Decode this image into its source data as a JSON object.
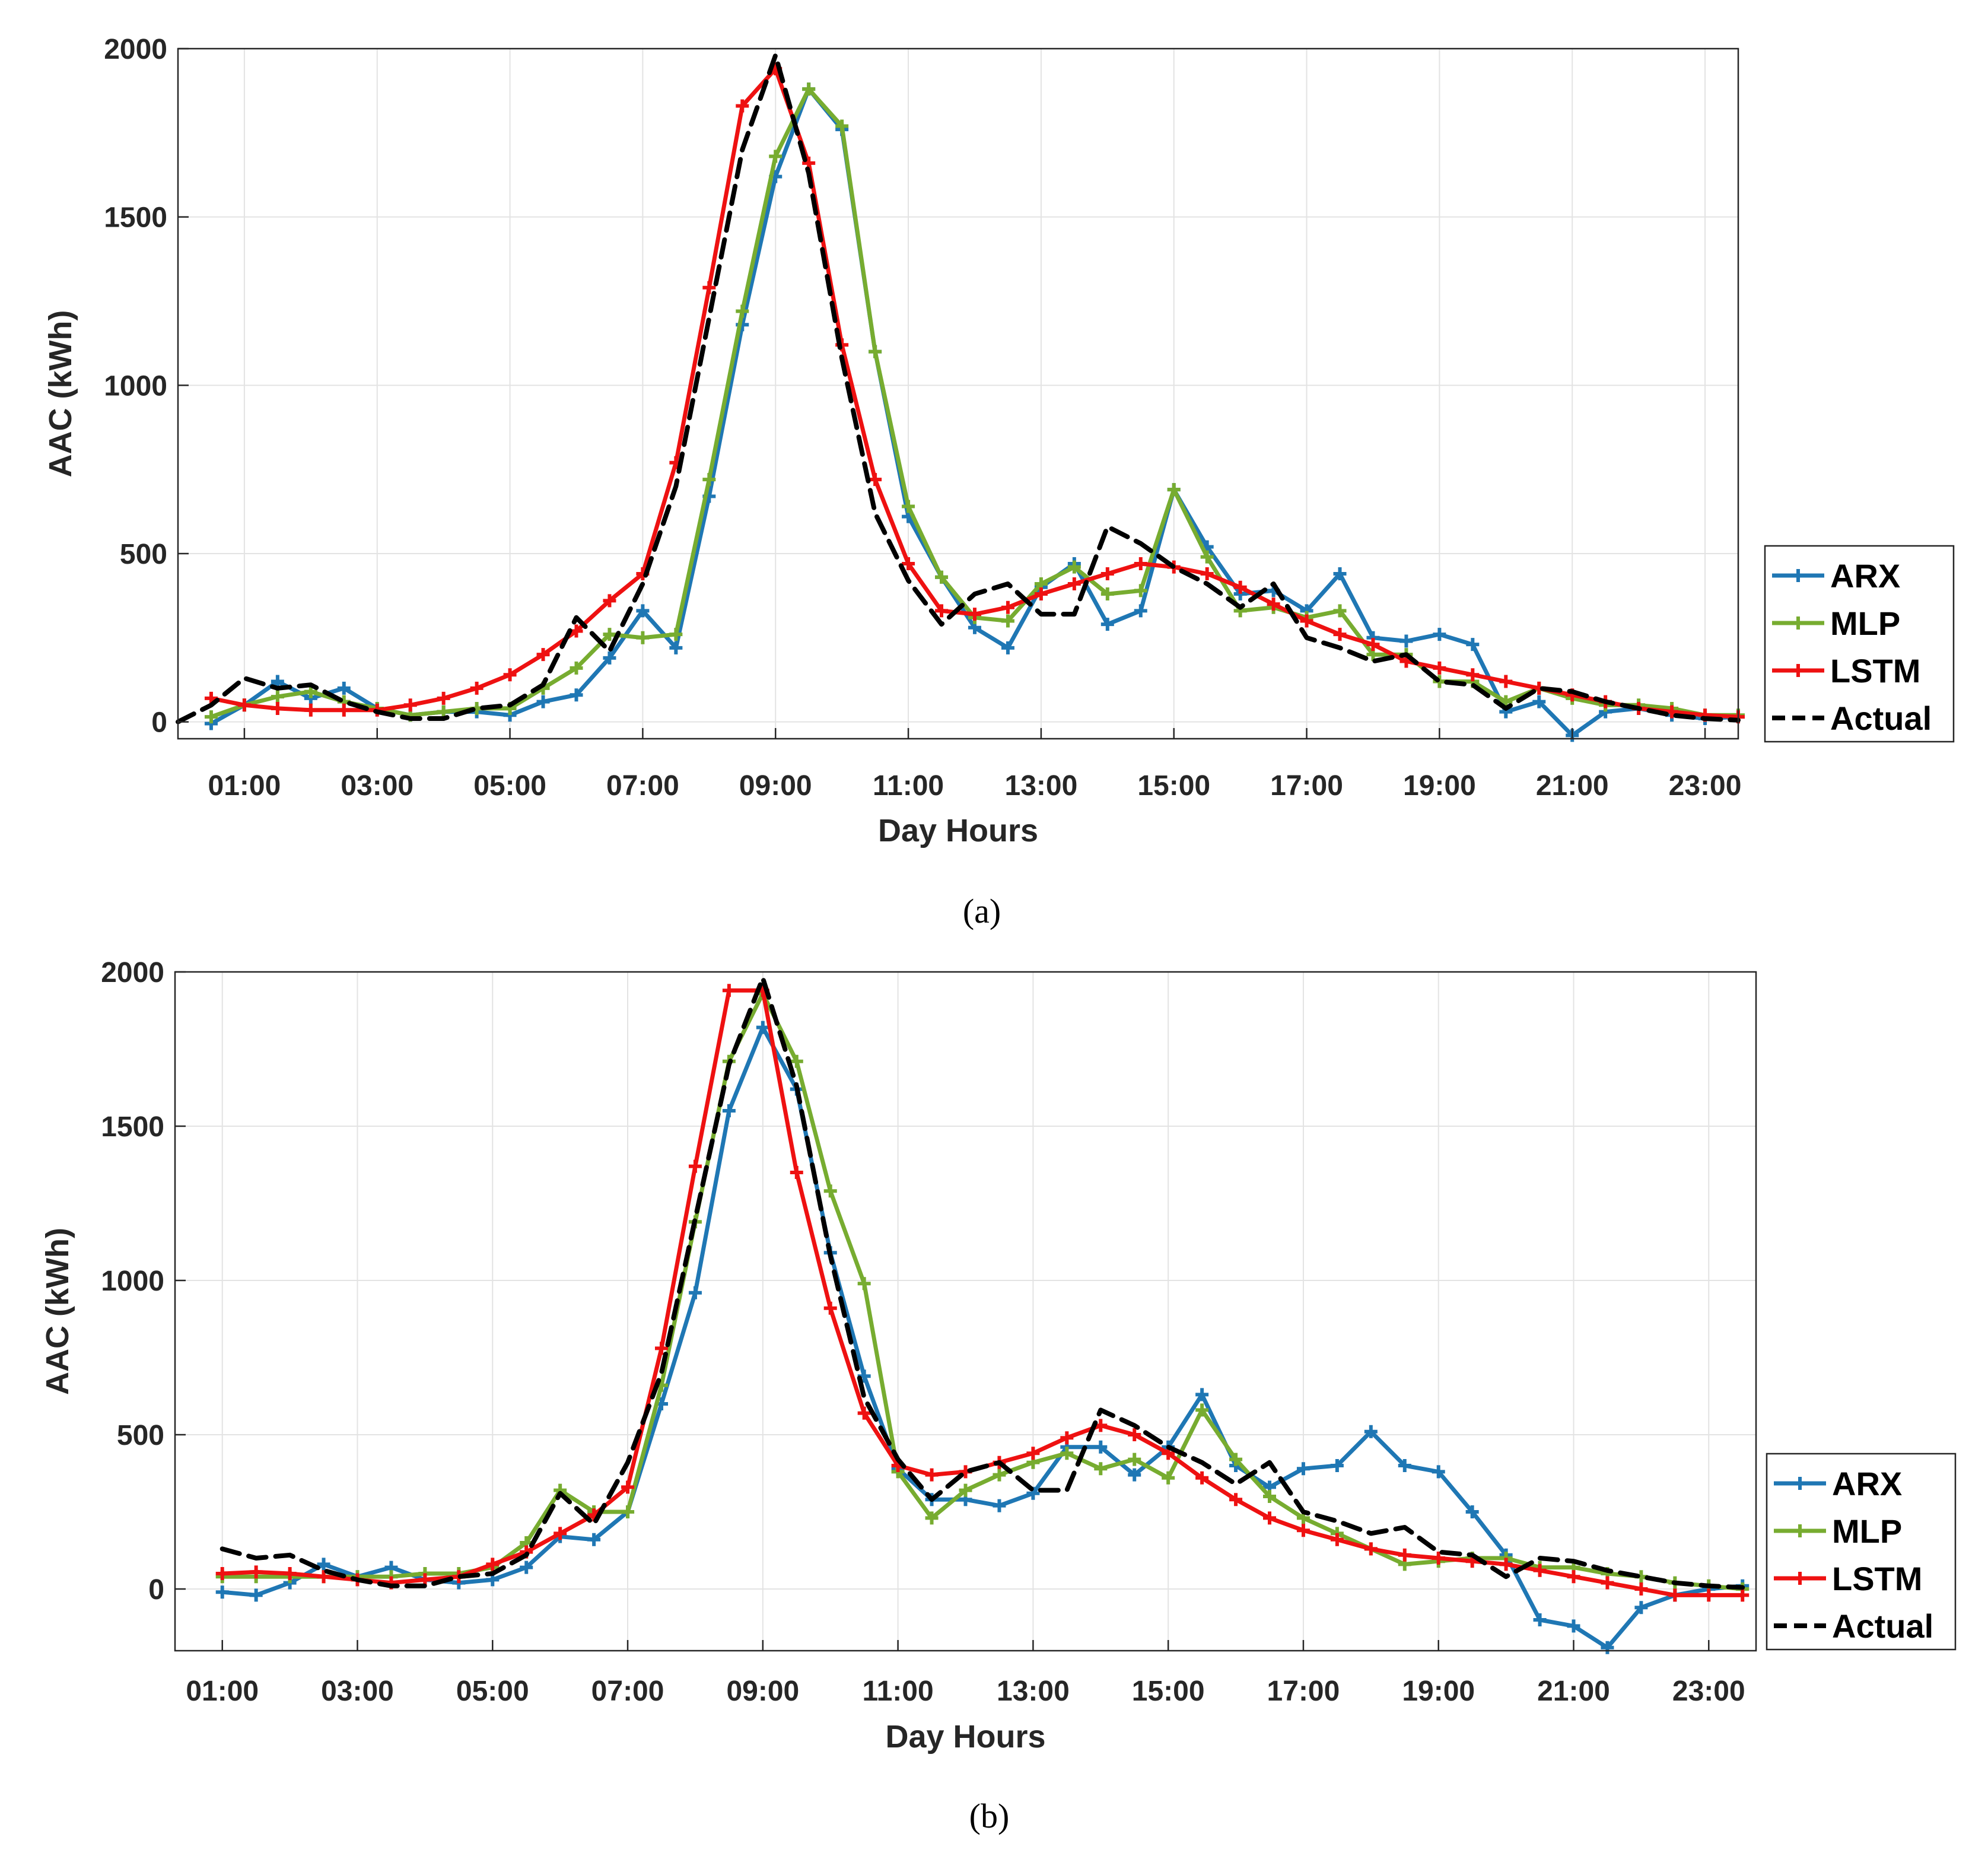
{
  "colors": {
    "ARX": "#1f77b4",
    "MLP": "#77ac30",
    "LSTM": "#ee1111",
    "Actual": "#000000"
  },
  "chart_data": [
    {
      "type": "line",
      "caption": "(a)",
      "xlabel": "Day Hours",
      "ylabel": "AAC (kWh)",
      "xticklabels": [
        "01:00",
        "03:00",
        "05:00",
        "07:00",
        "09:00",
        "11:00",
        "13:00",
        "15:00",
        "17:00",
        "19:00",
        "21:00",
        "23:00"
      ],
      "xtick_values": [
        1,
        3,
        5,
        7,
        9,
        11,
        13,
        15,
        17,
        19,
        21,
        23
      ],
      "xlim": [
        0,
        23.5
      ],
      "ylim": [
        -50,
        2000
      ],
      "yticks": [
        0,
        500,
        1000,
        1500,
        2000
      ],
      "yticklabels": [
        "0",
        "500",
        "1000",
        "1500",
        "2000"
      ],
      "legend_position": "lower-right-outside",
      "series": [
        {
          "name": "ARX",
          "marker": true,
          "style": "solid",
          "x": [
            0.5,
            1,
            1.5,
            2,
            2.5,
            3,
            3.5,
            4,
            4.5,
            5,
            5.5,
            6,
            6.5,
            7,
            7.5,
            8,
            8.5,
            9,
            9.5,
            10,
            10.5,
            11,
            11.5,
            12,
            12.5,
            13,
            13.5,
            14,
            14.5,
            15,
            15.5,
            16,
            16.5,
            17,
            17.5,
            18,
            18.5,
            19,
            19.5,
            20,
            20.5,
            21,
            21.5,
            22,
            22.5,
            23,
            23.5
          ],
          "y": [
            -5,
            50,
            120,
            70,
            100,
            40,
            20,
            30,
            30,
            20,
            60,
            80,
            190,
            330,
            220,
            670,
            1180,
            1620,
            1880,
            1760,
            1100,
            610,
            430,
            280,
            220,
            400,
            470,
            290,
            330,
            690,
            520,
            380,
            390,
            330,
            440,
            250,
            240,
            260,
            230,
            30,
            60,
            -40,
            30,
            40,
            20,
            10,
            15
          ]
        },
        {
          "name": "MLP",
          "marker": true,
          "style": "solid",
          "x": [
            0.5,
            1,
            1.5,
            2,
            2.5,
            3,
            3.5,
            4,
            4.5,
            5,
            5.5,
            6,
            6.5,
            7,
            7.5,
            8,
            8.5,
            9,
            9.5,
            10,
            10.5,
            11,
            11.5,
            12,
            12.5,
            13,
            13.5,
            14,
            14.5,
            15,
            15.5,
            16,
            16.5,
            17,
            17.5,
            18,
            18.5,
            19,
            19.5,
            20,
            20.5,
            21,
            21.5,
            22,
            22.5,
            23,
            23.5
          ],
          "y": [
            15,
            50,
            75,
            90,
            60,
            40,
            20,
            30,
            40,
            40,
            100,
            160,
            260,
            250,
            260,
            720,
            1220,
            1680,
            1880,
            1770,
            1100,
            640,
            430,
            310,
            300,
            410,
            460,
            380,
            390,
            690,
            490,
            330,
            340,
            310,
            330,
            200,
            200,
            120,
            120,
            60,
            100,
            70,
            50,
            50,
            40,
            20,
            20
          ]
        },
        {
          "name": "LSTM",
          "marker": true,
          "style": "solid",
          "x": [
            0.5,
            1,
            1.5,
            2,
            2.5,
            3,
            3.5,
            4,
            4.5,
            5,
            5.5,
            6,
            6.5,
            7,
            7.5,
            8,
            8.5,
            9,
            9.5,
            10,
            10.5,
            11,
            11.5,
            12,
            12.5,
            13,
            13.5,
            14,
            14.5,
            15,
            15.5,
            16,
            16.5,
            17,
            17.5,
            18,
            18.5,
            19,
            19.5,
            20,
            20.5,
            21,
            21.5,
            22,
            22.5,
            23,
            23.5
          ],
          "y": [
            70,
            50,
            40,
            35,
            35,
            35,
            50,
            70,
            100,
            140,
            200,
            270,
            360,
            440,
            770,
            1290,
            1830,
            1940,
            1660,
            1120,
            720,
            470,
            330,
            320,
            340,
            380,
            410,
            440,
            470,
            460,
            440,
            400,
            350,
            300,
            260,
            230,
            180,
            160,
            140,
            120,
            100,
            80,
            60,
            40,
            30,
            20,
            15
          ]
        },
        {
          "name": "Actual",
          "marker": false,
          "style": "dashed",
          "x": [
            0,
            0.5,
            1,
            1.5,
            2,
            2.5,
            3,
            3.5,
            4,
            4.5,
            5,
            5.5,
            6,
            6.5,
            7,
            7.5,
            8,
            8.5,
            9,
            9.5,
            10,
            10.5,
            11,
            11.5,
            12,
            12.5,
            13,
            13.5,
            14,
            14.5,
            15,
            15.5,
            16,
            16.5,
            17,
            17.5,
            18,
            18.5,
            19,
            19.5,
            20,
            20.5,
            21,
            21.5,
            22,
            22.5,
            23,
            23.5
          ],
          "y": [
            0,
            50,
            130,
            100,
            110,
            60,
            30,
            10,
            10,
            40,
            50,
            110,
            310,
            210,
            410,
            700,
            1200,
            1700,
            1980,
            1630,
            1080,
            620,
            420,
            290,
            380,
            410,
            320,
            320,
            580,
            530,
            460,
            410,
            340,
            410,
            250,
            220,
            180,
            200,
            120,
            110,
            40,
            100,
            90,
            60,
            40,
            20,
            10,
            5
          ]
        }
      ]
    },
    {
      "type": "line",
      "caption": "(b)",
      "xlabel": "Day Hours",
      "ylabel": "AAC (kWh)",
      "xticklabels": [
        "01:00",
        "03:00",
        "05:00",
        "07:00",
        "09:00",
        "11:00",
        "13:00",
        "15:00",
        "17:00",
        "19:00",
        "21:00",
        "23:00"
      ],
      "xtick_values": [
        1,
        3,
        5,
        7,
        9,
        11,
        13,
        15,
        17,
        19,
        21,
        23
      ],
      "xlim": [
        0.3,
        23.7
      ],
      "ylim": [
        -200,
        2000
      ],
      "yticks": [
        0,
        500,
        1000,
        1500,
        2000
      ],
      "yticklabels": [
        "0",
        "500",
        "1000",
        "1500",
        "2000"
      ],
      "legend_position": "lower-right-outside",
      "series": [
        {
          "name": "ARX",
          "marker": true,
          "style": "solid",
          "x": [
            1,
            1.5,
            2,
            2.5,
            3,
            3.5,
            4,
            4.5,
            5,
            5.5,
            6,
            6.5,
            7,
            7.5,
            8,
            8.5,
            9,
            9.5,
            10,
            10.5,
            11,
            11.5,
            12,
            12.5,
            13,
            13.5,
            14,
            14.5,
            15,
            15.5,
            16,
            16.5,
            17,
            17.5,
            18,
            18.5,
            19,
            19.5,
            20,
            20.5,
            21,
            21.5,
            22,
            22.5,
            23,
            23.5
          ],
          "y": [
            -10,
            -20,
            20,
            80,
            40,
            70,
            30,
            20,
            30,
            70,
            170,
            160,
            250,
            600,
            960,
            1550,
            1820,
            1620,
            1090,
            690,
            390,
            290,
            290,
            270,
            310,
            460,
            460,
            370,
            460,
            630,
            400,
            330,
            390,
            400,
            510,
            400,
            380,
            250,
            110,
            -100,
            -120,
            -190,
            -60,
            -20,
            0,
            10
          ]
        },
        {
          "name": "MLP",
          "marker": true,
          "style": "solid",
          "x": [
            1,
            1.5,
            2,
            2.5,
            3,
            3.5,
            4,
            4.5,
            5,
            5.5,
            6,
            6.5,
            7,
            7.5,
            8,
            8.5,
            9,
            9.5,
            10,
            10.5,
            11,
            11.5,
            12,
            12.5,
            13,
            13.5,
            14,
            14.5,
            15,
            15.5,
            16,
            16.5,
            17,
            17.5,
            18,
            18.5,
            19,
            19.5,
            20,
            20.5,
            21,
            21.5,
            22,
            22.5,
            23,
            23.5
          ],
          "y": [
            40,
            40,
            40,
            40,
            40,
            40,
            50,
            50,
            70,
            150,
            320,
            250,
            250,
            660,
            1190,
            1710,
            1930,
            1710,
            1290,
            990,
            380,
            230,
            320,
            370,
            410,
            440,
            390,
            420,
            360,
            580,
            420,
            300,
            230,
            180,
            130,
            80,
            90,
            100,
            100,
            70,
            70,
            50,
            40,
            20,
            10,
            0
          ]
        },
        {
          "name": "LSTM",
          "marker": true,
          "style": "solid",
          "x": [
            1,
            1.5,
            2,
            2.5,
            3,
            3.5,
            4,
            4.5,
            5,
            5.5,
            6,
            6.5,
            7,
            7.5,
            8,
            8.5,
            9,
            9.5,
            10,
            10.5,
            11,
            11.5,
            12,
            12.5,
            13,
            13.5,
            14,
            14.5,
            15,
            15.5,
            16,
            16.5,
            17,
            17.5,
            18,
            18.5,
            19,
            19.5,
            20,
            20.5,
            21,
            21.5,
            22,
            22.5,
            23,
            23.5
          ],
          "y": [
            50,
            55,
            50,
            40,
            30,
            20,
            30,
            40,
            80,
            120,
            180,
            240,
            330,
            780,
            1370,
            1940,
            1940,
            1350,
            910,
            570,
            400,
            370,
            380,
            410,
            440,
            490,
            530,
            500,
            440,
            360,
            290,
            230,
            190,
            160,
            130,
            110,
            100,
            90,
            80,
            60,
            40,
            20,
            0,
            -20,
            -20,
            -20
          ]
        },
        {
          "name": "Actual",
          "marker": false,
          "style": "dashed",
          "x": [
            1,
            1.5,
            2,
            2.5,
            3,
            3.5,
            4,
            4.5,
            5,
            5.5,
            6,
            6.5,
            7,
            7.5,
            8,
            8.5,
            9,
            9.5,
            10,
            10.5,
            11,
            11.5,
            12,
            12.5,
            13,
            13.5,
            14,
            14.5,
            15,
            15.5,
            16,
            16.5,
            17,
            17.5,
            18,
            18.5,
            19,
            19.5,
            20,
            20.5,
            21,
            21.5,
            22,
            22.5,
            23,
            23.5
          ],
          "y": [
            130,
            100,
            110,
            60,
            30,
            10,
            10,
            40,
            50,
            110,
            310,
            210,
            410,
            700,
            1200,
            1700,
            1980,
            1630,
            1080,
            620,
            420,
            290,
            380,
            410,
            320,
            320,
            580,
            530,
            460,
            410,
            340,
            410,
            250,
            220,
            180,
            200,
            120,
            110,
            40,
            100,
            90,
            60,
            40,
            20,
            10,
            5
          ]
        }
      ]
    }
  ]
}
